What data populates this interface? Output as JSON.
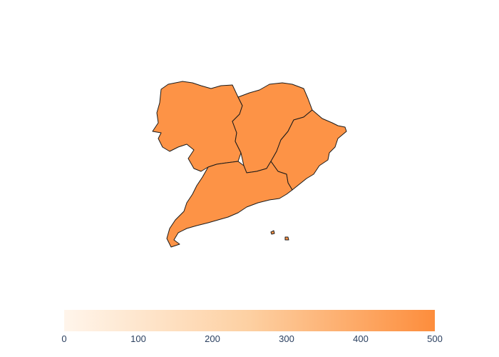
{
  "chart_data": {
    "type": "choropleth",
    "regions": [
      {
        "name": "",
        "value": 500
      },
      {
        "name": "",
        "value": 500
      },
      {
        "name": "",
        "value": 500
      },
      {
        "name": "",
        "value": 500
      }
    ],
    "colorscale": [
      "#fff5eb",
      "#fdd0a2",
      "#fd8d3c"
    ],
    "color_range": [
      0,
      500
    ],
    "colorbar": {
      "orientation": "horizontal",
      "ticks": [
        "0",
        "100",
        "200",
        "300",
        "400",
        "500"
      ]
    }
  }
}
